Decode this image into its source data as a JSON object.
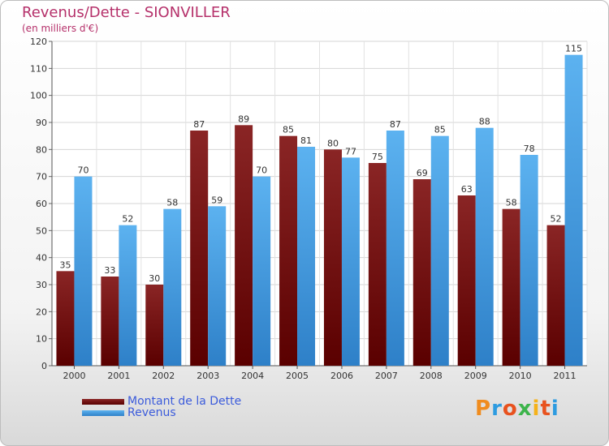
{
  "title": "Revenus/Dette - SIONVILLER",
  "subtitle": "(en milliers d'€)",
  "colors": {
    "dette": "#7a1515",
    "revenus": "#4aa3e8",
    "title": "#b5306a",
    "legend_text": "#3b5bdb"
  },
  "logo": {
    "text": "Proxiti",
    "letters": [
      "P",
      "r",
      "o",
      "x",
      "i",
      "t",
      "i"
    ],
    "colors": [
      "#f08c1e",
      "#2d9be0",
      "#e8521e",
      "#3cb44b",
      "#f5b21b",
      "#e8521e",
      "#2d9be0"
    ]
  },
  "chart_data": {
    "type": "bar",
    "title": "Revenus/Dette - SIONVILLER",
    "ylabel": "(en milliers d'€)",
    "categories": [
      "2000",
      "2001",
      "2002",
      "2003",
      "2004",
      "2005",
      "2006",
      "2007",
      "2008",
      "2009",
      "2010",
      "2011"
    ],
    "series": [
      {
        "name": "Montant de la Dette",
        "values": [
          35,
          33,
          30,
          87,
          89,
          85,
          80,
          75,
          69,
          63,
          58,
          52
        ]
      },
      {
        "name": "Revenus",
        "values": [
          70,
          52,
          58,
          59,
          70,
          81,
          77,
          87,
          85,
          88,
          78,
          115
        ]
      }
    ],
    "ylim": [
      0,
      120
    ],
    "yticks": [
      0,
      10,
      20,
      30,
      40,
      50,
      60,
      70,
      80,
      90,
      100,
      110,
      120
    ],
    "grid": true,
    "legend": "bottom-left"
  }
}
